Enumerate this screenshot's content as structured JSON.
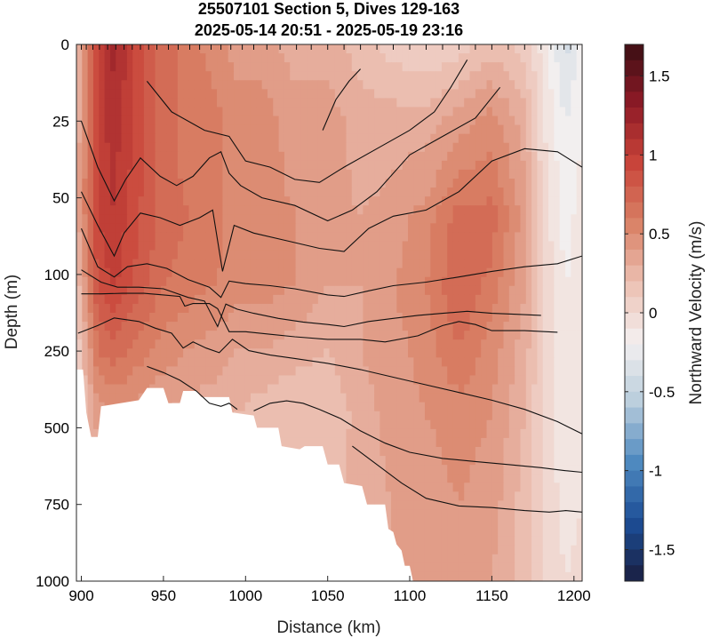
{
  "chart_data": {
    "type": "heatmap",
    "title_lines": [
      "25507101 Section 5, Dives 129-163",
      "2025-05-14 20:51 - 2025-05-19 23:16"
    ],
    "xlabel": "Distance (km)",
    "ylabel": "Depth (m)",
    "colorbar_label": "Northward Velocity (m/s)",
    "xlim": [
      897,
      1205
    ],
    "x_ticks": [
      900,
      950,
      1000,
      1050,
      1100,
      1150,
      1200
    ],
    "y_ticks": [
      {
        "label": "0",
        "depth": 0
      },
      {
        "label": "25",
        "depth": 25
      },
      {
        "label": "50",
        "depth": 50
      },
      {
        "label": "100",
        "depth": 100
      },
      {
        "label": "250",
        "depth": 250
      },
      {
        "label": "500",
        "depth": 500
      },
      {
        "label": "750",
        "depth": 750
      },
      {
        "label": "1000",
        "depth": 1000
      }
    ],
    "clim": [
      -1.7,
      1.7
    ],
    "colorbar_ticks": [
      {
        "label": "1.5",
        "value": 1.5
      },
      {
        "label": "1",
        "value": 1
      },
      {
        "label": "0.5",
        "value": 0.5
      },
      {
        "label": "0",
        "value": 0
      },
      {
        "label": "-0.5",
        "value": -0.5
      },
      {
        "label": "-1",
        "value": -1
      },
      {
        "label": "-1.5",
        "value": -1.5
      }
    ],
    "colormap": [
      "#3b0f14",
      "#8e1a26",
      "#c9453a",
      "#d98166",
      "#ecc0b2",
      "#f4f0f0",
      "#b9cddc",
      "#4f8ac0",
      "#1c4e96",
      "#1a1e40"
    ],
    "dive_positions": [
      900,
      903,
      907,
      911,
      916,
      921,
      926,
      931,
      936,
      941,
      946,
      953,
      959,
      966,
      972,
      979,
      985,
      991,
      998,
      1005,
      1013,
      1021,
      1031,
      1040,
      1050,
      1060,
      1070,
      1080,
      1090,
      1100,
      1110,
      1120,
      1130,
      1140,
      1150,
      1160,
      1170,
      1180,
      1186,
      1190,
      1194,
      1198,
      1202
    ],
    "velocity_grid": {
      "x": [
        898,
        910,
        920,
        935,
        950,
        965,
        980,
        995,
        1010,
        1030,
        1050,
        1070,
        1090,
        1110,
        1130,
        1150,
        1170,
        1182,
        1195,
        1205
      ],
      "depth": [
        0,
        25,
        60,
        120,
        250,
        450,
        750,
        1000
      ],
      "values": [
        [
          0.3,
          1.0,
          1.2,
          0.9,
          0.7,
          0.6,
          0.5,
          0.4,
          0.4,
          0.3,
          0.3,
          0.2,
          0.1,
          0.05,
          0.1,
          0.2,
          0.1,
          -0.1,
          -0.4,
          -0.2
        ],
        [
          0.3,
          1.0,
          1.1,
          0.9,
          0.7,
          0.6,
          0.6,
          0.5,
          0.5,
          0.4,
          0.4,
          0.3,
          0.3,
          0.3,
          0.4,
          0.5,
          0.3,
          -0.05,
          -0.25,
          -0.15
        ],
        [
          0.35,
          0.95,
          1.05,
          0.85,
          0.7,
          0.65,
          0.6,
          0.5,
          0.5,
          0.45,
          0.4,
          0.35,
          0.4,
          0.5,
          0.7,
          0.7,
          0.4,
          0.0,
          -0.2,
          -0.1
        ],
        [
          0.2,
          0.85,
          0.95,
          0.8,
          0.65,
          0.6,
          0.55,
          0.5,
          0.5,
          0.45,
          0.35,
          0.35,
          0.45,
          0.55,
          0.75,
          0.6,
          0.35,
          0.05,
          -0.15,
          -0.1
        ],
        [
          0.1,
          0.65,
          0.7,
          0.6,
          0.5,
          0.45,
          0.4,
          0.35,
          0.35,
          0.3,
          0.25,
          0.35,
          0.4,
          0.5,
          0.65,
          0.5,
          0.3,
          0.05,
          -0.15,
          -0.1
        ],
        [
          0.05,
          0.4,
          0.45,
          0.4,
          0.35,
          0.3,
          0.3,
          0.25,
          0.2,
          0.15,
          0.15,
          0.3,
          0.4,
          0.45,
          0.5,
          0.45,
          0.25,
          0.0,
          -0.15,
          -0.1
        ],
        [
          0.0,
          0.3,
          0.35,
          0.3,
          0.3,
          0.25,
          0.25,
          0.2,
          0.2,
          0.2,
          0.2,
          0.3,
          0.35,
          0.4,
          0.45,
          0.4,
          0.2,
          0.05,
          -0.1,
          -0.05
        ],
        [
          0.0,
          0.25,
          0.3,
          0.3,
          0.25,
          0.25,
          0.2,
          0.2,
          0.2,
          0.2,
          0.25,
          0.3,
          0.35,
          0.35,
          0.4,
          0.35,
          0.2,
          0.05,
          -0.05,
          0.0
        ]
      ]
    },
    "seafloor_mask": [
      {
        "x": 897,
        "depth": 310
      },
      {
        "x": 901,
        "depth": 310
      },
      {
        "x": 903,
        "depth": 450
      },
      {
        "x": 906,
        "depth": 530
      },
      {
        "x": 910,
        "depth": 530
      },
      {
        "x": 912,
        "depth": 430
      },
      {
        "x": 935,
        "depth": 410
      },
      {
        "x": 940,
        "depth": 370
      },
      {
        "x": 950,
        "depth": 370
      },
      {
        "x": 953,
        "depth": 420
      },
      {
        "x": 960,
        "depth": 420
      },
      {
        "x": 962,
        "depth": 380
      },
      {
        "x": 970,
        "depth": 380
      },
      {
        "x": 973,
        "depth": 400
      },
      {
        "x": 990,
        "depth": 400
      },
      {
        "x": 992,
        "depth": 450
      },
      {
        "x": 1005,
        "depth": 460
      },
      {
        "x": 1007,
        "depth": 500
      },
      {
        "x": 1020,
        "depth": 500
      },
      {
        "x": 1022,
        "depth": 560
      },
      {
        "x": 1033,
        "depth": 570
      },
      {
        "x": 1036,
        "depth": 560
      },
      {
        "x": 1047,
        "depth": 560
      },
      {
        "x": 1050,
        "depth": 620
      },
      {
        "x": 1057,
        "depth": 620
      },
      {
        "x": 1060,
        "depth": 680
      },
      {
        "x": 1071,
        "depth": 690
      },
      {
        "x": 1074,
        "depth": 750
      },
      {
        "x": 1085,
        "depth": 750
      },
      {
        "x": 1087,
        "depth": 830
      },
      {
        "x": 1090,
        "depth": 840
      },
      {
        "x": 1092,
        "depth": 880
      },
      {
        "x": 1095,
        "depth": 900
      },
      {
        "x": 1097,
        "depth": 950
      },
      {
        "x": 1100,
        "depth": 950
      },
      {
        "x": 1102,
        "depth": 1000
      }
    ],
    "contours": [
      {
        "points": [
          [
            1047,
            28
          ],
          [
            1055,
            18
          ],
          [
            1063,
            12
          ],
          [
            1070,
            8
          ]
        ]
      },
      {
        "points": [
          [
            940,
            12
          ],
          [
            955,
            22
          ],
          [
            975,
            28
          ],
          [
            990,
            30
          ],
          [
            1000,
            38
          ],
          [
            1015,
            40
          ],
          [
            1030,
            44
          ],
          [
            1045,
            45
          ],
          [
            1060,
            40
          ],
          [
            1080,
            34
          ],
          [
            1100,
            28
          ],
          [
            1115,
            22
          ],
          [
            1125,
            14
          ],
          [
            1135,
            5
          ]
        ]
      },
      {
        "points": [
          [
            900,
            25
          ],
          [
            910,
            40
          ],
          [
            920,
            52
          ],
          [
            927,
            44
          ],
          [
            936,
            37
          ],
          [
            948,
            43
          ],
          [
            958,
            46
          ],
          [
            968,
            43
          ],
          [
            978,
            37
          ],
          [
            985,
            35
          ],
          [
            990,
            42
          ],
          [
            997,
            46
          ],
          [
            1010,
            50
          ],
          [
            1030,
            55
          ],
          [
            1050,
            65
          ],
          [
            1065,
            58
          ],
          [
            1080,
            48
          ],
          [
            1100,
            36
          ],
          [
            1120,
            30
          ],
          [
            1140,
            24
          ],
          [
            1155,
            14
          ]
        ]
      },
      {
        "points": [
          [
            900,
            48
          ],
          [
            910,
            68
          ],
          [
            920,
            88
          ],
          [
            926,
            73
          ],
          [
            936,
            60
          ],
          [
            948,
            63
          ],
          [
            960,
            68
          ],
          [
            972,
            63
          ],
          [
            980,
            58
          ],
          [
            986,
            98
          ],
          [
            993,
            68
          ],
          [
            1005,
            73
          ],
          [
            1025,
            78
          ],
          [
            1045,
            83
          ],
          [
            1060,
            85
          ],
          [
            1075,
            70
          ],
          [
            1090,
            62
          ],
          [
            1110,
            58
          ],
          [
            1130,
            48
          ],
          [
            1150,
            38
          ],
          [
            1170,
            34
          ],
          [
            1190,
            35
          ],
          [
            1205,
            40
          ]
        ]
      },
      {
        "points": [
          [
            900,
            70
          ],
          [
            910,
            95
          ],
          [
            920,
            105
          ],
          [
            928,
            95
          ],
          [
            940,
            93
          ],
          [
            952,
            96
          ],
          [
            965,
            110
          ],
          [
            978,
            125
          ],
          [
            985,
            145
          ],
          [
            990,
            113
          ],
          [
            1000,
            118
          ],
          [
            1015,
            122
          ],
          [
            1030,
            128
          ],
          [
            1050,
            140
          ],
          [
            1060,
            143
          ],
          [
            1075,
            132
          ],
          [
            1090,
            122
          ],
          [
            1110,
            115
          ],
          [
            1130,
            105
          ],
          [
            1150,
            98
          ],
          [
            1170,
            95
          ],
          [
            1190,
            93
          ],
          [
            1205,
            88
          ]
        ]
      },
      {
        "points": [
          [
            900,
            97
          ],
          [
            912,
            115
          ],
          [
            922,
            125
          ],
          [
            935,
            125
          ],
          [
            950,
            128
          ],
          [
            965,
            145
          ],
          [
            975,
            152
          ],
          [
            983,
            202
          ],
          [
            988,
            158
          ],
          [
            995,
            168
          ],
          [
            1005,
            176
          ],
          [
            1020,
            186
          ],
          [
            1035,
            193
          ],
          [
            1050,
            198
          ],
          [
            1060,
            202
          ],
          [
            1075,
            192
          ],
          [
            1090,
            186
          ],
          [
            1105,
            180
          ],
          [
            1120,
            176
          ],
          [
            1135,
            172
          ],
          [
            1150,
            176
          ],
          [
            1165,
            178
          ],
          [
            1180,
            180
          ]
        ]
      },
      {
        "points": [
          [
            900,
            138
          ],
          [
            912,
            138
          ],
          [
            925,
            137
          ],
          [
            938,
            137
          ],
          [
            950,
            140
          ],
          [
            960,
            143
          ],
          [
            963,
            162
          ],
          [
            968,
            157
          ],
          [
            978,
            157
          ],
          [
            983,
            167
          ],
          [
            990,
            212
          ],
          [
            1000,
            212
          ],
          [
            1015,
            217
          ],
          [
            1030,
            222
          ],
          [
            1050,
            227
          ],
          [
            1070,
            227
          ],
          [
            1085,
            232
          ],
          [
            1105,
            220
          ],
          [
            1120,
            200
          ],
          [
            1130,
            192
          ],
          [
            1140,
            198
          ],
          [
            1150,
            210
          ],
          [
            1170,
            210
          ],
          [
            1190,
            213
          ]
        ]
      },
      {
        "points": [
          [
            898,
            215
          ],
          [
            910,
            200
          ],
          [
            920,
            185
          ],
          [
            935,
            192
          ],
          [
            945,
            205
          ],
          [
            955,
            215
          ],
          [
            962,
            244
          ],
          [
            968,
            232
          ],
          [
            976,
            244
          ],
          [
            984,
            255
          ],
          [
            992,
            227
          ],
          [
            1002,
            249
          ],
          [
            1015,
            263
          ],
          [
            1030,
            274
          ],
          [
            1050,
            290
          ],
          [
            1070,
            310
          ],
          [
            1090,
            335
          ],
          [
            1110,
            360
          ],
          [
            1130,
            385
          ],
          [
            1150,
            410
          ],
          [
            1170,
            440
          ],
          [
            1190,
            480
          ],
          [
            1205,
            520
          ]
        ]
      },
      {
        "points": [
          [
            940,
            300
          ],
          [
            950,
            320
          ],
          [
            960,
            345
          ],
          [
            970,
            380
          ],
          [
            978,
            420
          ],
          [
            985,
            430
          ],
          [
            990,
            420
          ],
          [
            995,
            440
          ]
        ]
      },
      {
        "points": [
          [
            1005,
            445
          ],
          [
            1015,
            420
          ],
          [
            1025,
            412
          ],
          [
            1035,
            420
          ],
          [
            1045,
            440
          ],
          [
            1058,
            470
          ],
          [
            1070,
            510
          ],
          [
            1085,
            550
          ],
          [
            1100,
            580
          ],
          [
            1120,
            600
          ],
          [
            1140,
            610
          ],
          [
            1160,
            620
          ],
          [
            1180,
            630
          ],
          [
            1195,
            640
          ],
          [
            1205,
            645
          ]
        ]
      },
      {
        "points": [
          [
            1065,
            560
          ],
          [
            1080,
            620
          ],
          [
            1095,
            680
          ],
          [
            1110,
            730
          ],
          [
            1130,
            755
          ],
          [
            1150,
            760
          ],
          [
            1170,
            770
          ],
          [
            1185,
            775
          ],
          [
            1195,
            770
          ],
          [
            1205,
            775
          ]
        ]
      }
    ]
  }
}
